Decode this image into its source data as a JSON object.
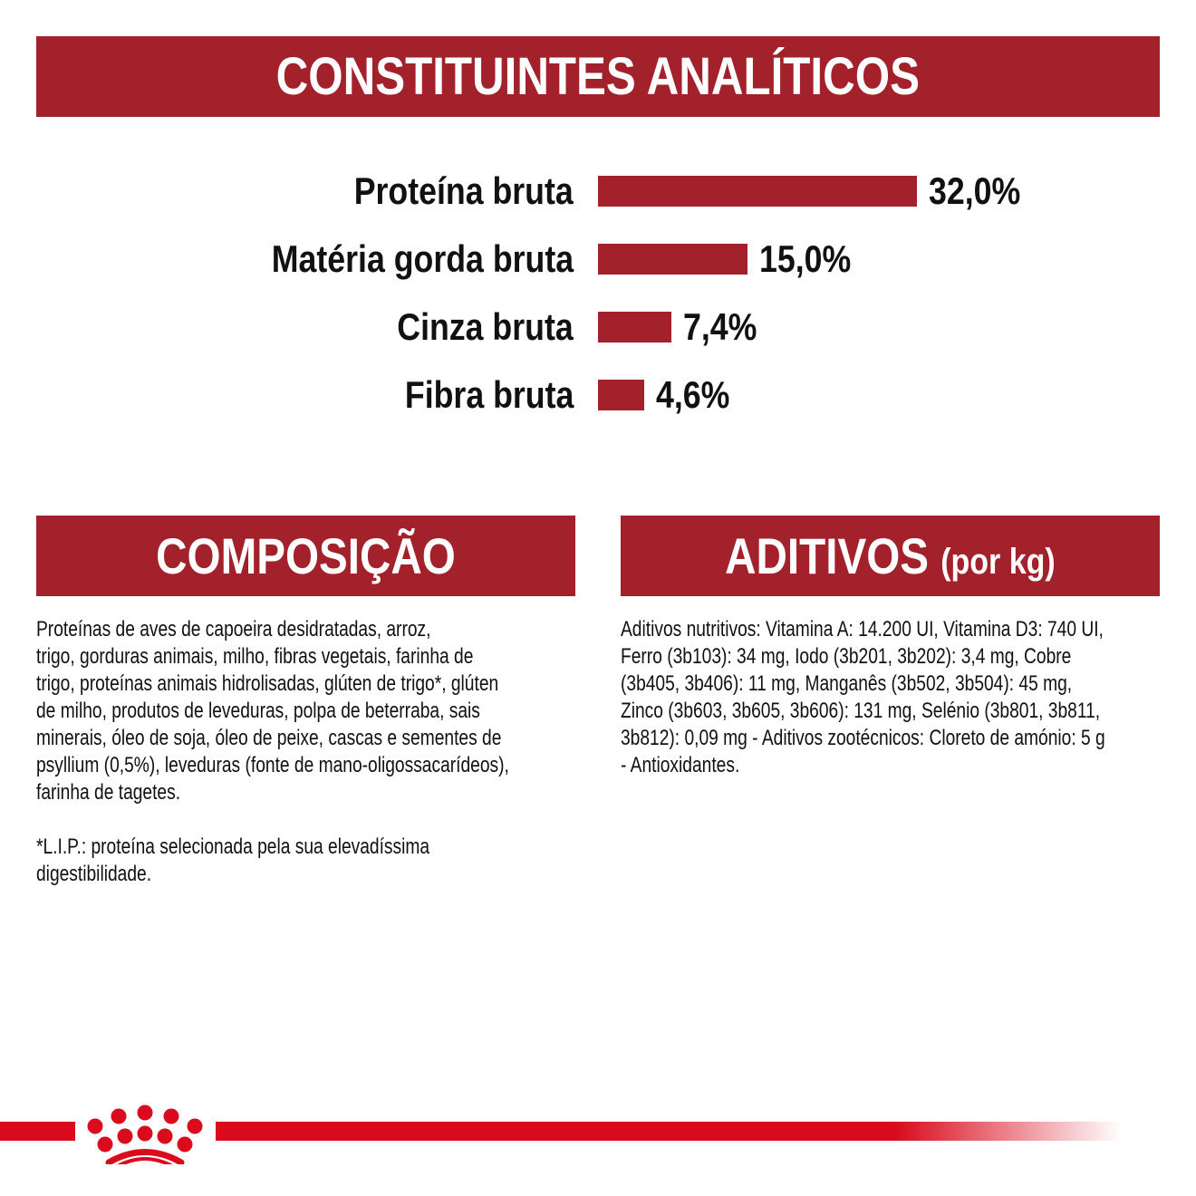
{
  "headers": {
    "analytic": "CONSTITUINTES ANALÍTICOS",
    "composition": "COMPOSIÇÃO",
    "additives": "ADITIVOS",
    "additives_unit": "(por kg)"
  },
  "chart_data": {
    "type": "bar",
    "orientation": "horizontal",
    "categories": [
      "Proteína bruta",
      "Matéria gorda bruta",
      "Cinza bruta",
      "Fibra bruta"
    ],
    "values": [
      32.0,
      15.0,
      7.4,
      4.6
    ],
    "value_labels": [
      "32,0%",
      "15,0%",
      "7,4%",
      "4,6%"
    ],
    "unit": "%",
    "bar_color": "#a3212b",
    "grid": false
  },
  "composition": {
    "lines": [
      "Proteínas de aves de capoeira desidratadas, arroz,",
      "trigo, gorduras animais, milho, fibras vegetais, farinha de",
      "trigo, proteínas animais hidrolisadas, glúten de trigo*, glúten",
      "de milho, produtos de leveduras, polpa de beterraba, sais",
      "minerais, óleo de soja, óleo de peixe, cascas e sementes de",
      "psyllium (0,5%), leveduras (fonte de mano-oligossacarídeos),",
      "farinha de tagetes.",
      "",
      "*L.I.P.: proteína selecionada pela sua elevadíssima",
      "digestibilidade."
    ]
  },
  "additives": {
    "lines": [
      "Aditivos nutritivos: Vitamina A: 14.200 UI, Vitamina D3: 740 UI,",
      "Ferro (3b103): 34 mg, Iodo (3b201, 3b202): 3,4 mg, Cobre",
      "(3b405, 3b406): 11 mg, Manganês (3b502, 3b504): 45 mg,",
      "Zinco (3b603, 3b605, 3b606): 131 mg, Selénio (3b801, 3b811,",
      "3b812): 0,09 mg - Aditivos zootécnicos: Cloreto de amónio: 5 g",
      "- Antioxidantes."
    ]
  },
  "colors": {
    "header": "#a3212b",
    "brand_red": "#d90b1d"
  },
  "logo": {
    "icon": "royal-canin-crown-icon"
  }
}
